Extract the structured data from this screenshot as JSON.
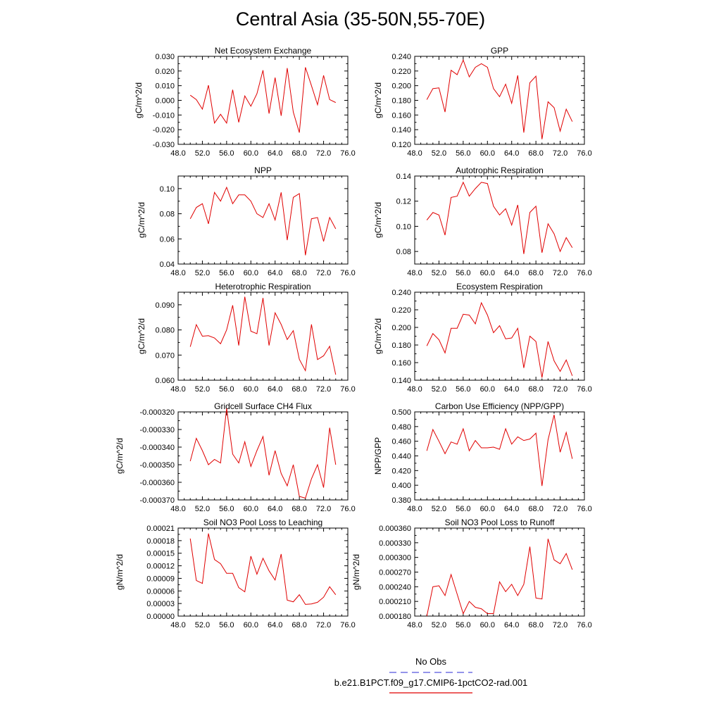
{
  "title": "Central Asia (35-50N,55-70E)",
  "legend": {
    "obs_label": "No Obs",
    "obs_color": "#5555dd",
    "model_label": "b.e21.B1PCT.f09_g17.CMIP6-1pctCO2-rad.001",
    "model_color": "#e00000"
  },
  "chart_data": [
    {
      "type": "line",
      "title": "Net Ecosystem Exchange",
      "ylabel": "gC/m^2/d",
      "xlim": [
        48,
        76
      ],
      "ylim": [
        -0.03,
        0.03
      ],
      "xticks": [
        "48.0",
        "52.0",
        "56.0",
        "60.0",
        "64.0",
        "68.0",
        "72.0",
        "76.0"
      ],
      "yticks": [
        "-0.030",
        "-0.020",
        "-0.010",
        "0.000",
        "0.010",
        "0.020",
        "0.030"
      ],
      "x": [
        50,
        51,
        52,
        53,
        54,
        55,
        56,
        57,
        58,
        59,
        60,
        61,
        62,
        63,
        64,
        65,
        66,
        67,
        68,
        69,
        70,
        71,
        72,
        73,
        74
      ],
      "series": [
        {
          "name": "b.e21.B1PCT.f09_g17.CMIP6-1pctCO2-rad.001",
          "values": [
            0.0035,
            0.0005,
            -0.006,
            0.0103,
            -0.0155,
            -0.0095,
            -0.0155,
            0.0072,
            -0.015,
            0.003,
            -0.004,
            0.0045,
            0.0205,
            -0.009,
            0.0155,
            -0.0105,
            0.022,
            -0.008,
            -0.022,
            0.0225,
            0.01,
            -0.003,
            0.017,
            0.0005,
            -0.0015
          ]
        }
      ]
    },
    {
      "type": "line",
      "title": "GPP",
      "ylabel": "gC/m^2/d",
      "xlim": [
        48,
        76
      ],
      "ylim": [
        0.12,
        0.24
      ],
      "xticks": [
        "48.0",
        "52.0",
        "56.0",
        "60.0",
        "64.0",
        "68.0",
        "72.0",
        "76.0"
      ],
      "yticks": [
        "0.120",
        "0.140",
        "0.160",
        "0.180",
        "0.200",
        "0.220",
        "0.240"
      ],
      "x": [
        50,
        51,
        52,
        53,
        54,
        55,
        56,
        57,
        58,
        59,
        60,
        61,
        62,
        63,
        64,
        65,
        66,
        67,
        68,
        69,
        70,
        71,
        72,
        73,
        74
      ],
      "series": [
        {
          "name": "b.e21.B1PCT.f09_g17.CMIP6-1pctCO2-rad.001",
          "values": [
            0.181,
            0.196,
            0.197,
            0.164,
            0.221,
            0.215,
            0.235,
            0.212,
            0.225,
            0.23,
            0.225,
            0.196,
            0.185,
            0.202,
            0.176,
            0.214,
            0.136,
            0.204,
            0.213,
            0.127,
            0.178,
            0.17,
            0.138,
            0.168,
            0.151
          ]
        }
      ]
    },
    {
      "type": "line",
      "title": "NPP",
      "ylabel": "gC/m^2/d",
      "xlim": [
        48,
        76
      ],
      "ylim": [
        0.04,
        0.11
      ],
      "xticks": [
        "48.0",
        "52.0",
        "56.0",
        "60.0",
        "64.0",
        "68.0",
        "72.0",
        "76.0"
      ],
      "yticks": [
        "0.04",
        "0.06",
        "0.08",
        "0.10"
      ],
      "x": [
        50,
        51,
        52,
        53,
        54,
        55,
        56,
        57,
        58,
        59,
        60,
        61,
        62,
        63,
        64,
        65,
        66,
        67,
        68,
        69,
        70,
        71,
        72,
        73,
        74
      ],
      "series": [
        {
          "name": "b.e21.B1PCT.f09_g17.CMIP6-1pctCO2-rad.001",
          "values": [
            0.076,
            0.085,
            0.088,
            0.072,
            0.097,
            0.09,
            0.101,
            0.088,
            0.095,
            0.095,
            0.09,
            0.08,
            0.077,
            0.088,
            0.075,
            0.097,
            0.059,
            0.093,
            0.096,
            0.047,
            0.076,
            0.077,
            0.058,
            0.077,
            0.068
          ]
        }
      ]
    },
    {
      "type": "line",
      "title": "Autotrophic Respiration",
      "ylabel": "gC/m^2/d",
      "xlim": [
        48,
        76
      ],
      "ylim": [
        0.07,
        0.14
      ],
      "xticks": [
        "48.0",
        "52.0",
        "56.0",
        "60.0",
        "64.0",
        "68.0",
        "72.0",
        "76.0"
      ],
      "yticks": [
        "0.08",
        "0.10",
        "0.12",
        "0.14"
      ],
      "x": [
        50,
        51,
        52,
        53,
        54,
        55,
        56,
        57,
        58,
        59,
        60,
        61,
        62,
        63,
        64,
        65,
        66,
        67,
        68,
        69,
        70,
        71,
        72,
        73,
        74
      ],
      "series": [
        {
          "name": "b.e21.B1PCT.f09_g17.CMIP6-1pctCO2-rad.001",
          "values": [
            0.105,
            0.111,
            0.109,
            0.093,
            0.123,
            0.124,
            0.135,
            0.124,
            0.13,
            0.135,
            0.134,
            0.116,
            0.109,
            0.114,
            0.101,
            0.117,
            0.078,
            0.111,
            0.116,
            0.079,
            0.102,
            0.094,
            0.08,
            0.091,
            0.083
          ]
        }
      ]
    },
    {
      "type": "line",
      "title": "Heterotrophic Respiration",
      "ylabel": "gC/m^2/d",
      "xlim": [
        48,
        76
      ],
      "ylim": [
        0.06,
        0.095
      ],
      "xticks": [
        "48.0",
        "52.0",
        "56.0",
        "60.0",
        "64.0",
        "68.0",
        "72.0",
        "76.0"
      ],
      "yticks": [
        "0.060",
        "0.070",
        "0.080",
        "0.090"
      ],
      "x": [
        50,
        51,
        52,
        53,
        54,
        55,
        56,
        57,
        58,
        59,
        60,
        61,
        62,
        63,
        64,
        65,
        66,
        67,
        68,
        69,
        70,
        71,
        72,
        73,
        74
      ],
      "series": [
        {
          "name": "b.e21.B1PCT.f09_g17.CMIP6-1pctCO2-rad.001",
          "values": [
            0.0733,
            0.0821,
            0.0775,
            0.0777,
            0.0768,
            0.0745,
            0.08,
            0.0898,
            0.0738,
            0.0932,
            0.0795,
            0.0785,
            0.0927,
            0.0738,
            0.0868,
            0.0822,
            0.0762,
            0.0797,
            0.0683,
            0.0638,
            0.0822,
            0.0682,
            0.0697,
            0.0735,
            0.0622
          ]
        }
      ]
    },
    {
      "type": "line",
      "title": "Ecosystem Respiration",
      "ylabel": "gC/m^2/d",
      "xlim": [
        48,
        76
      ],
      "ylim": [
        0.14,
        0.24
      ],
      "xticks": [
        "48.0",
        "52.0",
        "56.0",
        "60.0",
        "64.0",
        "68.0",
        "72.0",
        "76.0"
      ],
      "yticks": [
        "0.140",
        "0.160",
        "0.180",
        "0.200",
        "0.220",
        "0.240"
      ],
      "x": [
        50,
        51,
        52,
        53,
        54,
        55,
        56,
        57,
        58,
        59,
        60,
        61,
        62,
        63,
        64,
        65,
        66,
        67,
        68,
        69,
        70,
        71,
        72,
        73,
        74
      ],
      "series": [
        {
          "name": "b.e21.B1PCT.f09_g17.CMIP6-1pctCO2-rad.001",
          "values": [
            0.179,
            0.193,
            0.186,
            0.171,
            0.199,
            0.199,
            0.215,
            0.214,
            0.204,
            0.228,
            0.214,
            0.194,
            0.202,
            0.187,
            0.188,
            0.199,
            0.154,
            0.19,
            0.184,
            0.143,
            0.184,
            0.162,
            0.15,
            0.163,
            0.145
          ]
        }
      ]
    },
    {
      "type": "line",
      "title": "Gridcell Surface CH4 Flux",
      "ylabel": "gC/m^2/d",
      "xlim": [
        48,
        76
      ],
      "ylim": [
        -0.00037,
        -0.00032
      ],
      "xticks": [
        "48.0",
        "52.0",
        "56.0",
        "60.0",
        "64.0",
        "68.0",
        "72.0",
        "76.0"
      ],
      "yticks": [
        "-0.000370",
        "-0.000360",
        "-0.000350",
        "-0.000340",
        "-0.000330",
        "-0.000320"
      ],
      "x": [
        50,
        51,
        52,
        53,
        54,
        55,
        56,
        57,
        58,
        59,
        60,
        61,
        62,
        63,
        64,
        65,
        66,
        67,
        68,
        69,
        70,
        71,
        72,
        73,
        74
      ],
      "series": [
        {
          "name": "b.e21.B1PCT.f09_g17.CMIP6-1pctCO2-rad.001",
          "values": [
            -0.000348,
            -0.000335,
            -0.000342,
            -0.00035,
            -0.000347,
            -0.000349,
            -0.000318,
            -0.000344,
            -0.000349,
            -0.000337,
            -0.000351,
            -0.000342,
            -0.000334,
            -0.000356,
            -0.000342,
            -0.000355,
            -0.000362,
            -0.00035,
            -0.000368,
            -0.000369,
            -0.000358,
            -0.00035,
            -0.000363,
            -0.000329,
            -0.00035
          ]
        }
      ]
    },
    {
      "type": "line",
      "title": "Carbon Use Efficiency (NPP/GPP)",
      "ylabel": "NPP/GPP",
      "xlim": [
        48,
        76
      ],
      "ylim": [
        0.38,
        0.5
      ],
      "xticks": [
        "48.0",
        "52.0",
        "56.0",
        "60.0",
        "64.0",
        "68.0",
        "72.0",
        "76.0"
      ],
      "yticks": [
        "0.380",
        "0.400",
        "0.420",
        "0.440",
        "0.460",
        "0.480",
        "0.500"
      ],
      "x": [
        50,
        51,
        52,
        53,
        54,
        55,
        56,
        57,
        58,
        59,
        60,
        61,
        62,
        63,
        64,
        65,
        66,
        67,
        68,
        69,
        70,
        71,
        72,
        73,
        74
      ],
      "series": [
        {
          "name": "b.e21.B1PCT.f09_g17.CMIP6-1pctCO2-rad.001",
          "values": [
            0.447,
            0.476,
            0.46,
            0.443,
            0.459,
            0.456,
            0.477,
            0.447,
            0.461,
            0.451,
            0.451,
            0.452,
            0.449,
            0.477,
            0.456,
            0.466,
            0.461,
            0.463,
            0.471,
            0.399,
            0.462,
            0.496,
            0.445,
            0.472,
            0.436
          ]
        }
      ]
    },
    {
      "type": "line",
      "title": "Soil NO3 Pool Loss to Leaching",
      "ylabel": "gN/m^2/d",
      "xlim": [
        48,
        76
      ],
      "ylim": [
        0,
        0.00021
      ],
      "xticks": [
        "48.0",
        "52.0",
        "56.0",
        "60.0",
        "64.0",
        "68.0",
        "72.0",
        "76.0"
      ],
      "yticks": [
        "0.00000",
        "0.00003",
        "0.00006",
        "0.00009",
        "0.00012",
        "0.00015",
        "0.00018",
        "0.00021"
      ],
      "x": [
        50,
        51,
        52,
        53,
        54,
        55,
        56,
        57,
        58,
        59,
        60,
        61,
        62,
        63,
        64,
        65,
        66,
        67,
        68,
        69,
        70,
        71,
        72,
        73,
        74
      ],
      "series": [
        {
          "name": "b.e21.B1PCT.f09_g17.CMIP6-1pctCO2-rad.001",
          "values": [
            0.000185,
            8.5e-05,
            7.8e-05,
            0.000197,
            0.000135,
            0.000125,
            0.000102,
            0.000102,
            6.8e-05,
            5.8e-05,
            0.000143,
            0.0001,
            0.000138,
            0.000108,
            8.6e-05,
            0.000148,
            3.8e-05,
            3.4e-05,
            5.1e-05,
            2.8e-05,
            2.9e-05,
            3.3e-05,
            4.5e-05,
            7e-05,
            5.1e-05
          ]
        }
      ]
    },
    {
      "type": "line",
      "title": "Soil NO3 Pool Loss to Runoff",
      "ylabel": "gN/m^2/d",
      "xlim": [
        48,
        76
      ],
      "ylim": [
        0.00018,
        0.00036
      ],
      "xticks": [
        "48.0",
        "52.0",
        "56.0",
        "60.0",
        "64.0",
        "68.0",
        "72.0",
        "76.0"
      ],
      "yticks": [
        "0.000180",
        "0.000210",
        "0.000240",
        "0.000270",
        "0.000300",
        "0.000330",
        "0.000360"
      ],
      "x": [
        50,
        51,
        52,
        53,
        54,
        55,
        56,
        57,
        58,
        59,
        60,
        61,
        62,
        63,
        64,
        65,
        66,
        67,
        68,
        69,
        70,
        71,
        72,
        73,
        74
      ],
      "series": [
        {
          "name": "b.e21.B1PCT.f09_g17.CMIP6-1pctCO2-rad.001",
          "values": [
            0.00018,
            0.00024,
            0.000242,
            0.000222,
            0.000265,
            0.000225,
            0.000185,
            0.00021,
            0.000198,
            0.000195,
            0.000185,
            0.000185,
            0.00025,
            0.00023,
            0.000245,
            0.000222,
            0.000245,
            0.000322,
            0.000217,
            0.000215,
            0.000338,
            0.000295,
            0.000287,
            0.000308,
            0.000275
          ]
        }
      ]
    }
  ]
}
